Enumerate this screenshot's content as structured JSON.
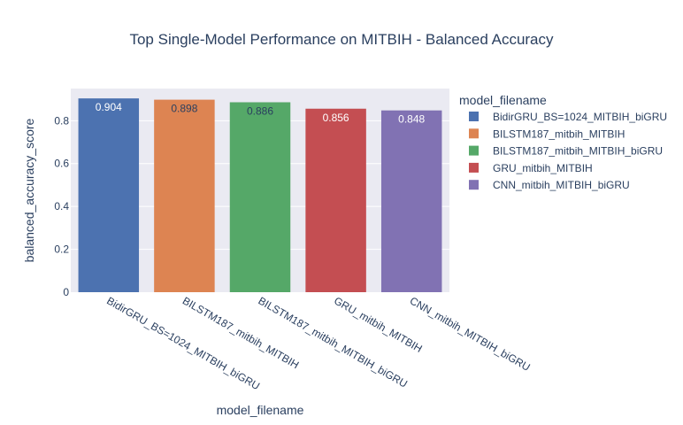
{
  "chart_data": {
    "type": "bar",
    "title": "Top Single-Model Performance on MITBIH - Balanced Accuracy",
    "xlabel": "model_filename",
    "ylabel": "balanced_accuracy_score",
    "ylim": [
      0,
      0.95
    ],
    "yticks": [
      0,
      0.2,
      0.4,
      0.6,
      0.8
    ],
    "ytick_labels": [
      "0",
      "0.2",
      "0.4",
      "0.6",
      "0.8"
    ],
    "grid": true,
    "legend_title": "model_filename",
    "legend_position": "right",
    "categories": [
      "BidirGRU_BS=1024_MITBIH_biGRU",
      "BILSTM187_mitbih_MITBIH",
      "BILSTM187_mitbih_MITBIH_biGRU",
      "GRU_mitbih_MITBIH",
      "CNN_mitbih_MITBIH_biGRU"
    ],
    "values": [
      0.904,
      0.898,
      0.886,
      0.856,
      0.848
    ],
    "value_labels": [
      "0.904",
      "0.898",
      "0.886",
      "0.856",
      "0.848"
    ],
    "colors": [
      "#4c72b0",
      "#dd8452",
      "#55a868",
      "#c44e52",
      "#8172b3"
    ],
    "label_colors": [
      "#ffffff",
      "#2a3f5f",
      "#2a3f5f",
      "#ffffff",
      "#ffffff"
    ]
  }
}
